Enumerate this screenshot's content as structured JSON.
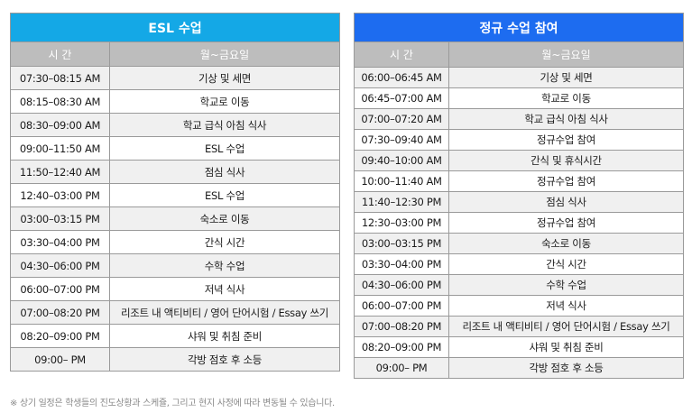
{
  "esl_table": {
    "title": "ESL 수업",
    "col_time": "시 간",
    "col_days": "월~금요일",
    "rows": [
      {
        "time": "07:30–08:15 AM",
        "activity": "기상 및 세면"
      },
      {
        "time": "08:15–08:30 AM",
        "activity": "학교로 이동"
      },
      {
        "time": "08:30–09:00 AM",
        "activity": "학교 급식 아침 식사"
      },
      {
        "time": "09:00–11:50 AM",
        "activity": "ESL 수업"
      },
      {
        "time": "11:50–12:40 AM",
        "activity": "점심 식사"
      },
      {
        "time": "12:40–03:00 PM",
        "activity": "ESL 수업"
      },
      {
        "time": "03:00–03:15 PM",
        "activity": "숙소로 이동"
      },
      {
        "time": "03:30–04:00 PM",
        "activity": "간식 시간"
      },
      {
        "time": "04:30–06:00 PM",
        "activity": "수학 수업"
      },
      {
        "time": "06:00–07:00 PM",
        "activity": "저녁 식사"
      },
      {
        "time": "07:00–08:20 PM",
        "activity": "리조트 내 액티비티 / 영어 단어시험 / Essay 쓰기"
      },
      {
        "time": "08:20–09:00 PM",
        "activity": "샤워 및 취침 준비"
      },
      {
        "time": "09:00– PM",
        "activity": "각방 점호 후 소등"
      }
    ]
  },
  "regular_table": {
    "title": "정규 수업 참여",
    "col_time": "시 간",
    "col_days": "월~금요일",
    "rows": [
      {
        "time": "06:00–06:45 AM",
        "activity": "기상 및 세면"
      },
      {
        "time": "06:45–07:00 AM",
        "activity": "학교로 이동"
      },
      {
        "time": "07:00–07:20 AM",
        "activity": "학교 급식 아침 식사"
      },
      {
        "time": "07:30–09:40 AM",
        "activity": "정규수업 참여"
      },
      {
        "time": "09:40–10:00 AM",
        "activity": "간식 및 휴식시간"
      },
      {
        "time": "10:00–11:40 AM",
        "activity": "정규수업 참여"
      },
      {
        "time": "11:40–12:30 PM",
        "activity": "점심 식사"
      },
      {
        "time": "12:30–03:00 PM",
        "activity": "정규수업 참여"
      },
      {
        "time": "03:00–03:15 PM",
        "activity": "숙소로 이동"
      },
      {
        "time": "03:30–04:00 PM",
        "activity": "간식 시간"
      },
      {
        "time": "04:30–06:00 PM",
        "activity": "수학 수업"
      },
      {
        "time": "06:00–07:00 PM",
        "activity": "저녁 식사"
      },
      {
        "time": "07:00–08:20 PM",
        "activity": "리조트 내 액티비티 / 영어 단어시험 / Essay 쓰기"
      },
      {
        "time": "08:20–09:00 PM",
        "activity": "샤워 및 취침 준비"
      },
      {
        "time": "09:00– PM",
        "activity": "각방 점호 후 소등"
      }
    ]
  },
  "footnote": "※ 상기 일정은 학생들의 진도상황과 스케쥴, 그리고 현지 사정에 따라 변동될 수 있습니다.",
  "colors": {
    "esl_header": "#14a8e6",
    "regular_header": "#1d6cf0",
    "column_header": "#bdbdbd",
    "row_alt": "#f0f0f0"
  }
}
